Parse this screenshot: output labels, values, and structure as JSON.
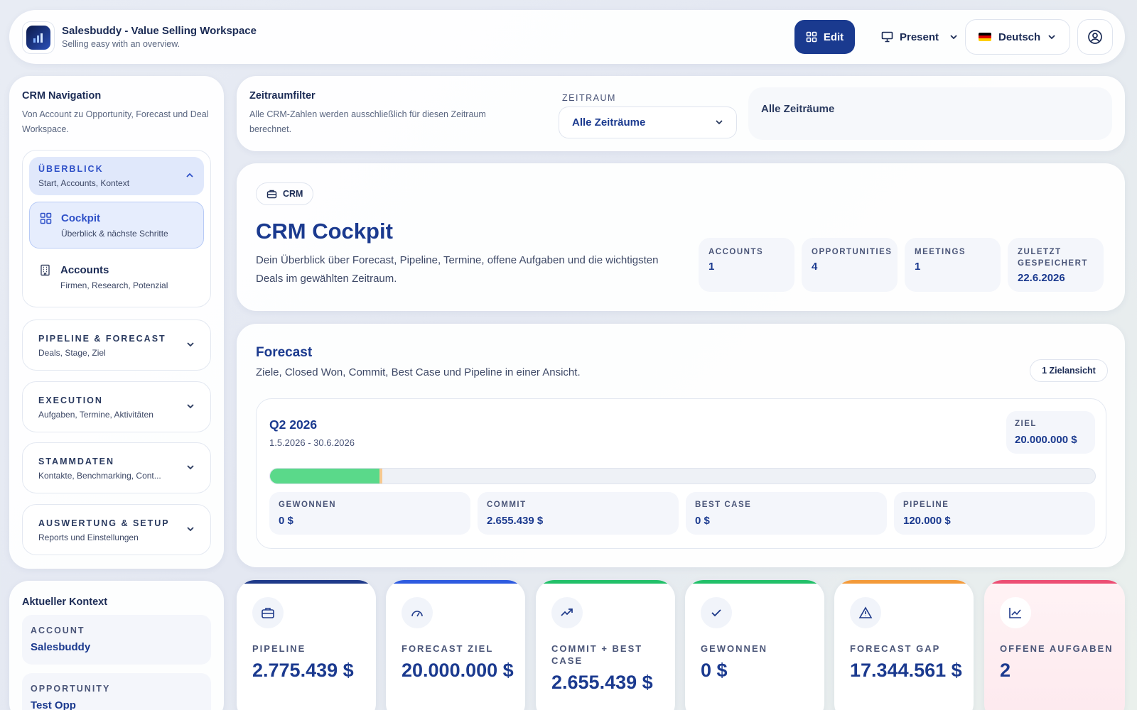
{
  "header": {
    "title": "Salesbuddy - Value Selling Workspace",
    "subtitle": "Selling easy with an overview.",
    "edit_label": "Edit",
    "present_label": "Present",
    "language_label": "Deutsch"
  },
  "sidebar": {
    "title": "CRM Navigation",
    "subtitle": "Von Account zu Opportunity, Forecast und Deal Workspace.",
    "groups": [
      {
        "label": "ÜBERBLICK",
        "desc": "Start, Accounts, Kontext",
        "expanded": true,
        "items": [
          {
            "label": "Cockpit",
            "desc": "Überblick & nächste Schritte",
            "active": true,
            "icon": "grid-icon"
          },
          {
            "label": "Accounts",
            "desc": "Firmen, Research, Potenzial",
            "active": false,
            "icon": "building-icon"
          }
        ]
      },
      {
        "label": "PIPELINE & FORECAST",
        "desc": "Deals, Stage, Ziel",
        "expanded": false
      },
      {
        "label": "EXECUTION",
        "desc": "Aufgaben, Termine, Aktivitäten",
        "expanded": false
      },
      {
        "label": "STAMMDATEN",
        "desc": "Kontakte, Benchmarking, Cont...",
        "expanded": false
      },
      {
        "label": "AUSWERTUNG & SETUP",
        "desc": "Reports und Einstellungen",
        "expanded": false
      }
    ]
  },
  "context": {
    "title": "Aktueller Kontext",
    "account_label": "ACCOUNT",
    "account_value": "Salesbuddy",
    "opportunity_label": "OPPORTUNITY",
    "opportunity_value": "Test Opp"
  },
  "filter": {
    "title": "Zeitraumfilter",
    "subtitle": "Alle CRM-Zahlen werden ausschließlich für diesen Zeitraum berechnet.",
    "field_label": "ZEITRAUM",
    "selected": "Alle Zeiträume",
    "display": "Alle Zeiträume"
  },
  "hero": {
    "pill": "CRM",
    "title": "CRM Cockpit",
    "description": "Dein Überblick über Forecast, Pipeline, Termine, offene Aufgaben und die wichtigsten Deals im gewählten Zeitraum.",
    "stats": [
      {
        "label": "ACCOUNTS",
        "value": "1"
      },
      {
        "label": "OPPORTUNITIES",
        "value": "4"
      },
      {
        "label": "MEETINGS",
        "value": "1"
      },
      {
        "label": "ZULETZT GESPEICHERT",
        "value": "22.6.2026"
      }
    ]
  },
  "forecast": {
    "title": "Forecast",
    "subtitle": "Ziele, Closed Won, Commit, Best Case und Pipeline in einer Ansicht.",
    "badge": "1 Zielansicht",
    "quarter": "Q2 2026",
    "range": "1.5.2026 - 30.6.2026",
    "goal_label": "ZIEL",
    "goal_value": "20.000.000 $",
    "progress_commit_fraction": 0.133,
    "progress_bestcase_fraction": 0.003,
    "metrics": [
      {
        "label": "GEWONNEN",
        "value": "0 $"
      },
      {
        "label": "COMMIT",
        "value": "2.655.439 $"
      },
      {
        "label": "BEST CASE",
        "value": "0 $"
      },
      {
        "label": "PIPELINE",
        "value": "120.000 $"
      }
    ]
  },
  "kpis": [
    {
      "label": "PIPELINE",
      "value": "2.775.439 $",
      "color": "#1f3a8a",
      "icon": "briefcase-icon"
    },
    {
      "label": "FORECAST ZIEL",
      "value": "20.000.000 $",
      "color": "#2e5be0",
      "icon": "gauge-icon"
    },
    {
      "label": "COMMIT + BEST CASE",
      "value": "2.655.439 $",
      "color": "#22c069",
      "icon": "trending-up-icon"
    },
    {
      "label": "GEWONNEN",
      "value": "0 $",
      "color": "#22c069",
      "icon": "check-icon"
    },
    {
      "label": "FORECAST GAP",
      "value": "17.344.561 $",
      "color": "#f39a3a",
      "icon": "warning-icon"
    },
    {
      "label": "OFFENE AUFGABEN",
      "value": "2",
      "color": "#ec4f74",
      "icon": "chart-line-icon"
    }
  ]
}
